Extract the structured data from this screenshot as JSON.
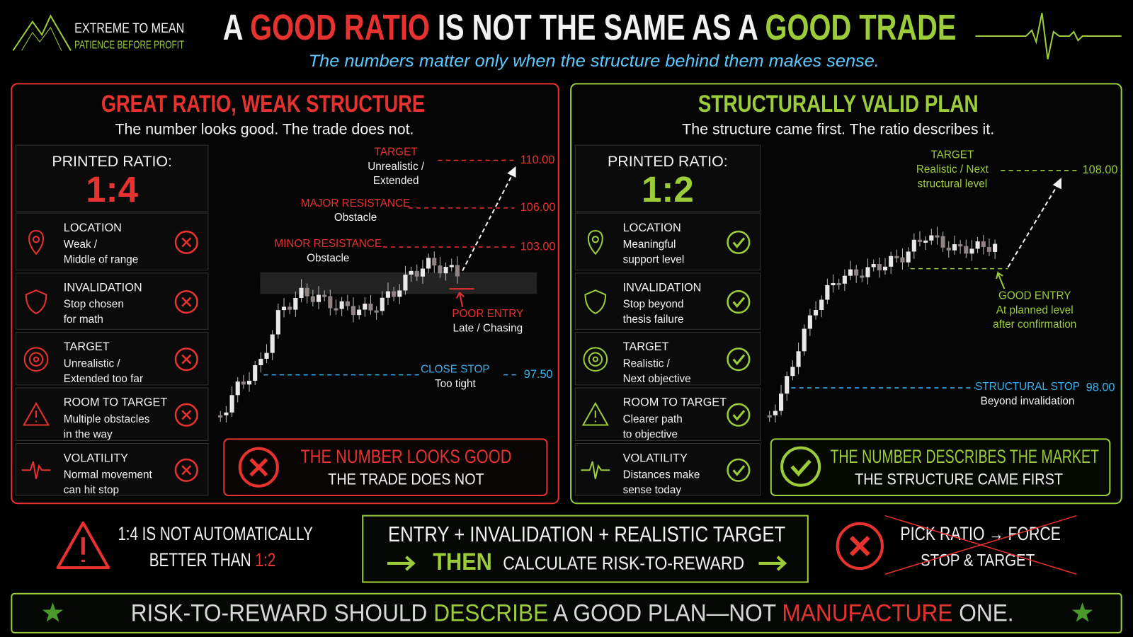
{
  "header": {
    "brand_line1": "EXTREME TO MEAN",
    "brand_line2": "PATIENCE BEFORE PROFIT",
    "title_parts": [
      "A ",
      "GOOD RATIO",
      " IS NOT THE SAME AS A ",
      "GOOD TRADE"
    ],
    "subtitle": "The numbers matter only when the structure behind them makes sense."
  },
  "left_panel": {
    "title": "GREAT RATIO, WEAK STRUCTURE",
    "subtitle": "The number looks good. The trade does not.",
    "ratio_label": "PRINTED RATIO:",
    "ratio": "1:4",
    "items": [
      {
        "title": "LOCATION",
        "lines": [
          "Weak /",
          "Middle of range"
        ]
      },
      {
        "title": "INVALIDATION",
        "lines": [
          "Stop chosen",
          "for math"
        ]
      },
      {
        "title": "TARGET",
        "lines": [
          "Unrealistic /",
          "Extended too far"
        ]
      },
      {
        "title": "ROOM TO TARGET",
        "lines": [
          "Multiple obstacles",
          "in the way"
        ]
      },
      {
        "title": "VOLATILITY",
        "lines": [
          "Normal movement",
          "can hit stop"
        ]
      }
    ],
    "chart": {
      "target": {
        "label": "TARGET",
        "lines": [
          "Unrealistic /",
          "Extended"
        ],
        "price": "110.00"
      },
      "major_resistance": {
        "label": "MAJOR RESISTANCE",
        "lines": [
          "Obstacle"
        ],
        "price": "106.00"
      },
      "minor_resistance": {
        "label": "MINOR RESISTANCE",
        "lines": [
          "Obstacle"
        ],
        "price": "103.00"
      },
      "poor_entry": {
        "label": "POOR ENTRY",
        "lines": [
          "Late / Chasing"
        ]
      },
      "close_stop": {
        "label": "CLOSE STOP",
        "lines": [
          "Too tight"
        ],
        "price": "97.50"
      }
    },
    "verdict": {
      "line1": "THE NUMBER LOOKS GOOD",
      "line2": "THE TRADE DOES NOT"
    }
  },
  "right_panel": {
    "title": "STRUCTURALLY VALID PLAN",
    "subtitle": "The structure came first. The ratio describes it.",
    "ratio_label": "PRINTED RATIO:",
    "ratio": "1:2",
    "items": [
      {
        "title": "LOCATION",
        "lines": [
          "Meaningful",
          "support level"
        ]
      },
      {
        "title": "INVALIDATION",
        "lines": [
          "Stop beyond",
          "thesis failure"
        ]
      },
      {
        "title": "TARGET",
        "lines": [
          "Realistic /",
          "Next objective"
        ]
      },
      {
        "title": "ROOM TO TARGET",
        "lines": [
          "Clearer path",
          "to objective"
        ]
      },
      {
        "title": "VOLATILITY",
        "lines": [
          "Distances make",
          "sense today"
        ]
      }
    ],
    "chart": {
      "target": {
        "label": "TARGET",
        "lines": [
          "Realistic / Next",
          "structural level"
        ],
        "price": "108.00"
      },
      "good_entry": {
        "label": "GOOD ENTRY",
        "lines": [
          "At planned level",
          "after confirmation"
        ]
      },
      "structural_stop": {
        "label": "STRUCTURAL STOP",
        "lines": [
          "Beyond invalidation"
        ],
        "price": "98.00"
      }
    },
    "verdict": {
      "line1": "THE NUMBER DESCRIBES THE MARKET",
      "line2": "THE STRUCTURE CAME FIRST"
    }
  },
  "bottom": {
    "warning_line1": "1:4 IS NOT AUTOMATICALLY",
    "warning_line2": "BETTER THAN ",
    "warning_highlight": "1:2",
    "process_line1": "ENTRY + INVALIDATION + REALISTIC TARGET",
    "process_then": "THEN",
    "process_line2": "CALCULATE RISK-TO-REWARD",
    "avoid_line1": "PICK RATIO → FORCE",
    "avoid_line2": "STOP & TARGET"
  },
  "footer": {
    "parts": [
      "RISK-TO-REWARD SHOULD ",
      "DESCRIBE",
      " A GOOD PLAN—NOT ",
      "MANUFACTURE",
      " ONE."
    ]
  }
}
